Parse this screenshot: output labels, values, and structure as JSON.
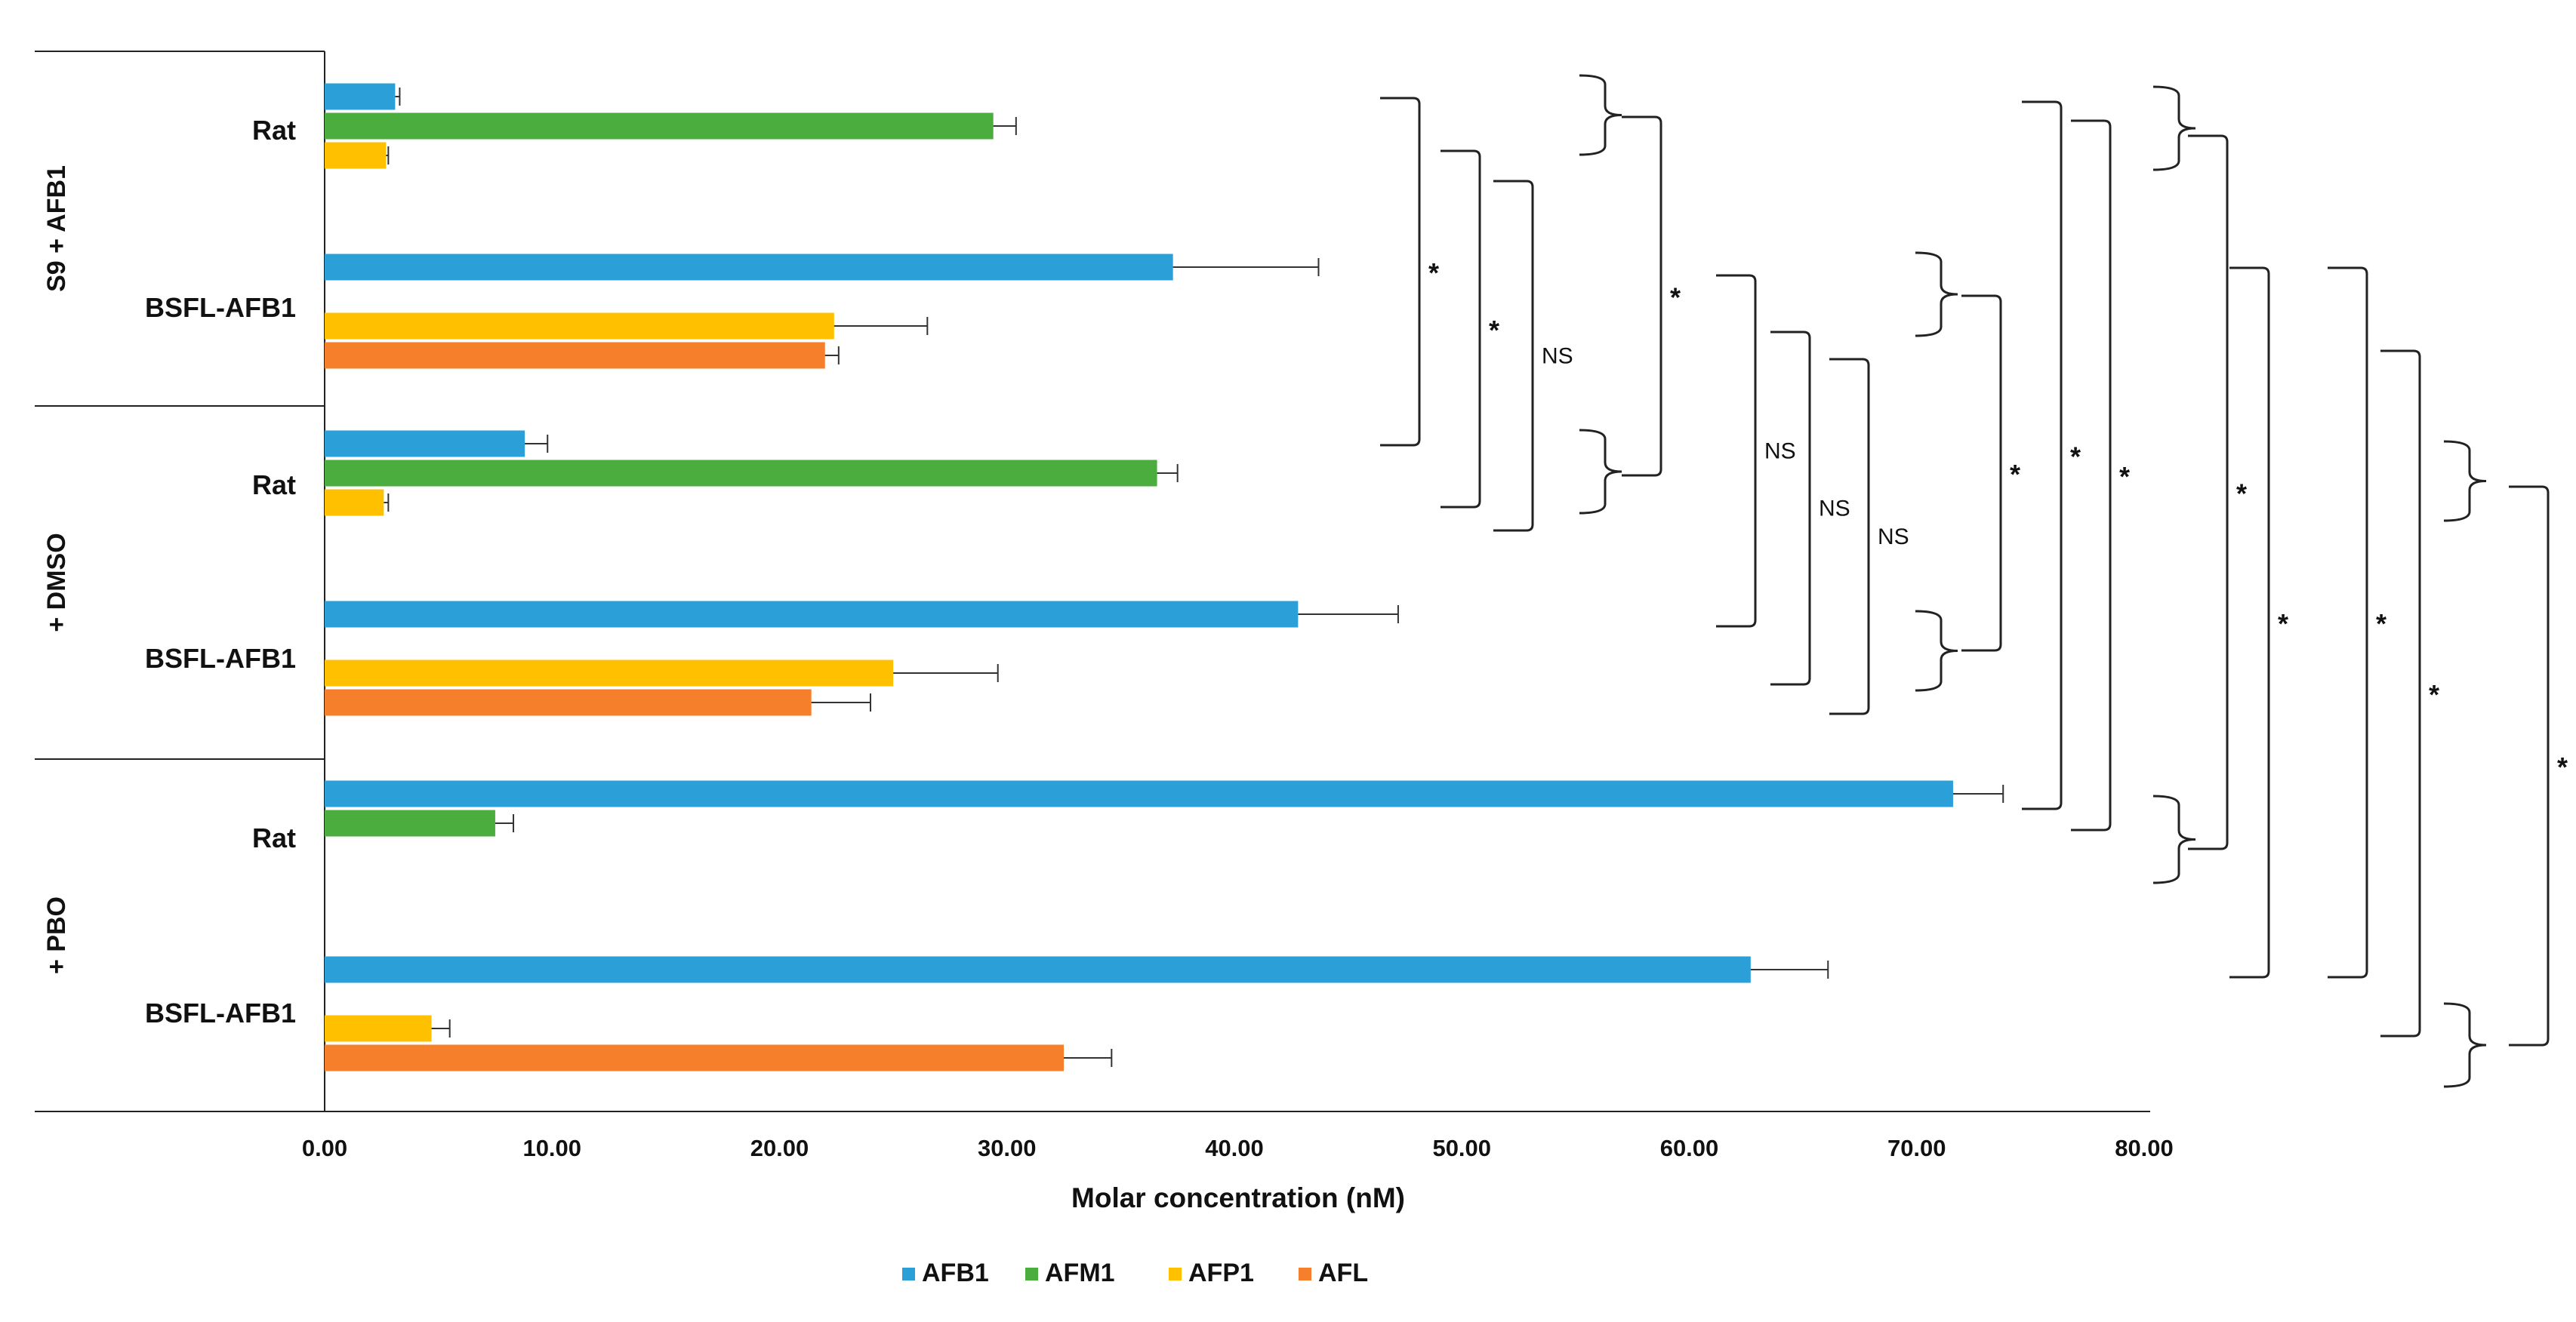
{
  "chart_data": {
    "type": "bar",
    "orientation": "horizontal",
    "title": "",
    "xlabel": "Molar concentration (nM)",
    "ylabel": "",
    "xlim": [
      0,
      80
    ],
    "grid": false,
    "legend_position": "bottom-center",
    "x_ticks": [
      "0.00",
      "10.00",
      "20.00",
      "30.00",
      "40.00",
      "50.00",
      "60.00",
      "70.00",
      "80.00"
    ],
    "series": [
      {
        "name": "AFB1",
        "color": "#2a9fd8"
      },
      {
        "name": "AFM1",
        "color": "#4aad3e"
      },
      {
        "name": "AFP1",
        "color": "#ffc000"
      },
      {
        "name": "AFL",
        "color": "#f57f2a"
      }
    ],
    "groups": [
      {
        "label": "S9 + AFB1",
        "categories": [
          {
            "label": "Rat",
            "bars": [
              {
                "series": "AFB1",
                "value": 3.1,
                "error": 0.2
              },
              {
                "series": "AFM1",
                "value": 29.4,
                "error": 1.0
              },
              {
                "series": "AFP1",
                "value": 2.7,
                "error": 0.1
              }
            ]
          },
          {
            "label": "BSFL-AFB1",
            "bars": [
              {
                "series": "AFB1",
                "value": 37.3,
                "error": 6.4
              },
              {
                "series": "AFP1",
                "value": 22.4,
                "error": 4.1
              },
              {
                "series": "AFL",
                "value": 22.0,
                "error": 0.6
              }
            ]
          }
        ]
      },
      {
        "label": "+ DMSO",
        "categories": [
          {
            "label": "Rat",
            "bars": [
              {
                "series": "AFB1",
                "value": 8.8,
                "error": 1.0
              },
              {
                "series": "AFM1",
                "value": 36.6,
                "error": 0.9
              },
              {
                "series": "AFP1",
                "value": 2.6,
                "error": 0.2
              }
            ]
          },
          {
            "label": "BSFL-AFB1",
            "bars": [
              {
                "series": "AFB1",
                "value": 42.8,
                "error": 4.4
              },
              {
                "series": "AFP1",
                "value": 25.0,
                "error": 4.6
              },
              {
                "series": "AFL",
                "value": 21.4,
                "error": 2.6
              }
            ]
          }
        ]
      },
      {
        "label": "+ PBO",
        "categories": [
          {
            "label": "Rat",
            "bars": [
              {
                "series": "AFB1",
                "value": 71.6,
                "error": 2.2
              },
              {
                "series": "AFM1",
                "value": 7.5,
                "error": 0.8
              }
            ]
          },
          {
            "label": "BSFL-AFB1",
            "bars": [
              {
                "series": "AFB1",
                "value": 62.7,
                "error": 3.4
              },
              {
                "series": "AFP1",
                "value": 4.7,
                "error": 0.8
              },
              {
                "series": "AFL",
                "value": 32.5,
                "error": 2.1
              }
            ]
          }
        ]
      }
    ],
    "annotations": [
      {
        "label": "*"
      },
      {
        "label": "*"
      },
      {
        "label": "NS"
      },
      {
        "label": "*"
      },
      {
        "label": "NS"
      },
      {
        "label": "NS"
      },
      {
        "label": "NS"
      },
      {
        "label": "*"
      },
      {
        "label": "*"
      },
      {
        "label": "*"
      },
      {
        "label": "*"
      },
      {
        "label": "*"
      },
      {
        "label": "*"
      },
      {
        "label": "*"
      },
      {
        "label": "*"
      }
    ]
  }
}
